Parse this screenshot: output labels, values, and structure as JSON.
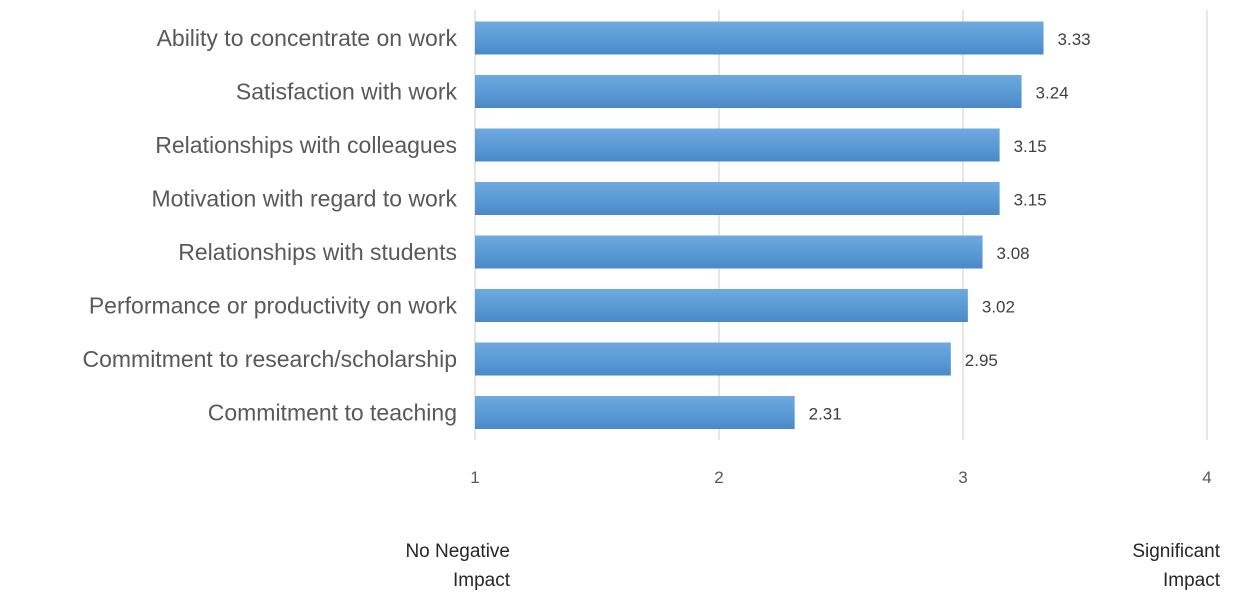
{
  "chart_data": {
    "type": "bar",
    "orientation": "horizontal",
    "categories": [
      "Ability to concentrate on work",
      "Satisfaction with work",
      "Relationships with colleagues",
      "Motivation with regard to work",
      "Relationships with students",
      "Performance or productivity on work",
      "Commitment to research/scholarship",
      "Commitment to teaching"
    ],
    "values": [
      3.33,
      3.24,
      3.15,
      3.15,
      3.08,
      3.02,
      2.95,
      2.31
    ],
    "value_labels": [
      "3.33",
      "3.24",
      "3.15",
      "3.15",
      "3.08",
      "3.02",
      "2.95",
      "2.31"
    ],
    "xlim": [
      1,
      4
    ],
    "xticks": [
      "1",
      "2",
      "3",
      "4"
    ],
    "grid": "vertical",
    "bar_color": "#5b9bd5",
    "bar_color_top": "#6fa9e0",
    "bar_color_bottom": "#4a89c8",
    "gridline_color": "#d9d9d9",
    "scale_anchors": {
      "low": {
        "line1": "No Negative",
        "line2": "Impact"
      },
      "high": {
        "line1": "Significant",
        "line2": "Impact"
      }
    }
  }
}
